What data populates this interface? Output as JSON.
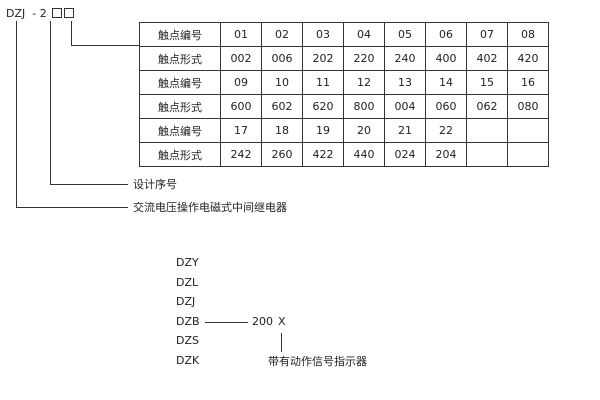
{
  "code": {
    "prefix": "DZJ",
    "dash": "-",
    "digit": "2"
  },
  "table": {
    "rows": [
      {
        "label": "触点编号",
        "cells": [
          "01",
          "02",
          "03",
          "04",
          "05",
          "06",
          "07",
          "08"
        ]
      },
      {
        "label": "触点形式",
        "cells": [
          "002",
          "006",
          "202",
          "220",
          "240",
          "400",
          "402",
          "420"
        ]
      },
      {
        "label": "触点编号",
        "cells": [
          "09",
          "10",
          "11",
          "12",
          "13",
          "14",
          "15",
          "16"
        ]
      },
      {
        "label": "触点形式",
        "cells": [
          "600",
          "602",
          "620",
          "800",
          "004",
          "060",
          "062",
          "080"
        ]
      },
      {
        "label": "触点编号",
        "cells": [
          "17",
          "18",
          "19",
          "20",
          "21",
          "22",
          "",
          ""
        ]
      },
      {
        "label": "触点形式",
        "cells": [
          "242",
          "260",
          "422",
          "440",
          "024",
          "204",
          "",
          ""
        ]
      }
    ]
  },
  "labels": {
    "design_no": "设计序号",
    "relay_type": "交流电压操作电磁式中间继电器"
  },
  "series": [
    "DZY",
    "DZL",
    "DZJ",
    "DZB",
    "DZS",
    "DZK"
  ],
  "suffix": {
    "number": "200",
    "x": "X",
    "note": "带有动作信号指示器"
  }
}
